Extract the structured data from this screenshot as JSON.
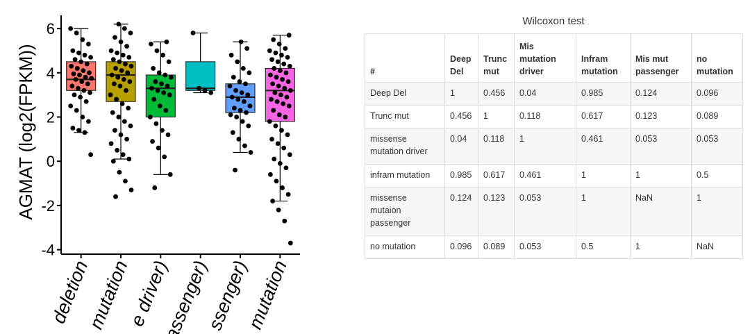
{
  "chart_data": {
    "type": "box",
    "y_label": "AGMAT  (log2(FPKM))",
    "categories": [
      "deletion",
      "mutation",
      "e driver)",
      "assenger)",
      "ssenger)",
      "mutation"
    ],
    "colors": [
      "#f8766d",
      "#b79f00",
      "#00ba38",
      "#00bfc4",
      "#619cff",
      "#f564e3"
    ],
    "ylim": [
      -4.2,
      6.6
    ],
    "yticks": [
      -4,
      -2,
      0,
      2,
      4,
      6
    ],
    "boxes": [
      {
        "min": 1.3,
        "q1": 3.2,
        "median": 3.7,
        "q3": 4.5,
        "max": 6.0,
        "points": [
          6.0,
          5.8,
          5.5,
          5.3,
          5.0,
          4.9,
          4.8,
          4.7,
          4.6,
          4.5,
          4.4,
          4.3,
          4.2,
          4.1,
          4.0,
          3.95,
          3.9,
          3.8,
          3.75,
          3.7,
          3.6,
          3.5,
          3.4,
          3.3,
          3.2,
          3.1,
          3.0,
          2.9,
          2.7,
          2.5,
          2.3,
          2.0,
          1.8,
          1.5,
          1.4,
          1.3,
          0.3
        ]
      },
      {
        "min": 0.1,
        "q1": 2.7,
        "median": 3.9,
        "q3": 4.5,
        "max": 6.2,
        "points": [
          6.2,
          6.0,
          5.8,
          5.6,
          5.4,
          5.2,
          5.0,
          4.9,
          4.8,
          4.7,
          4.6,
          4.5,
          4.4,
          4.3,
          4.2,
          4.1,
          4.0,
          3.9,
          3.8,
          3.7,
          3.6,
          3.5,
          3.4,
          3.2,
          3.0,
          2.8,
          2.6,
          2.4,
          2.2,
          2.0,
          1.8,
          1.6,
          1.4,
          1.2,
          1.0,
          0.8,
          0.5,
          0.3,
          0.1,
          0.0,
          -0.5,
          -0.9,
          -1.3,
          -1.6
        ]
      },
      {
        "min": -0.6,
        "q1": 2.0,
        "median": 3.3,
        "q3": 3.9,
        "max": 5.4,
        "points": [
          5.4,
          5.3,
          5.0,
          4.8,
          4.5,
          4.2,
          4.0,
          3.9,
          3.8,
          3.6,
          3.5,
          3.4,
          3.3,
          3.2,
          3.1,
          3.0,
          2.8,
          2.5,
          2.3,
          2.0,
          1.7,
          1.4,
          1.2,
          0.9,
          0.6,
          0.2,
          -0.6,
          -1.2
        ]
      },
      {
        "min": 3.1,
        "q1": 3.2,
        "median": 3.3,
        "q3": 4.5,
        "max": 5.8,
        "points": [
          5.8,
          3.3,
          3.2,
          3.1
        ]
      },
      {
        "min": 0.4,
        "q1": 2.2,
        "median": 2.9,
        "q3": 3.5,
        "max": 5.4,
        "points": [
          5.4,
          5.1,
          4.8,
          4.5,
          4.2,
          4.0,
          3.8,
          3.6,
          3.5,
          3.4,
          3.2,
          3.1,
          3.0,
          2.9,
          2.8,
          2.7,
          2.5,
          2.4,
          2.3,
          2.2,
          2.1,
          2.0,
          1.8,
          1.6,
          1.3,
          1.0,
          0.7,
          0.4,
          -0.4
        ]
      },
      {
        "min": -1.8,
        "q1": 1.8,
        "median": 3.2,
        "q3": 4.2,
        "max": 5.7,
        "points": [
          5.7,
          5.5,
          5.3,
          5.1,
          5.0,
          4.9,
          4.8,
          4.7,
          4.6,
          4.5,
          4.4,
          4.3,
          4.2,
          4.1,
          4.0,
          3.9,
          3.8,
          3.7,
          3.6,
          3.5,
          3.4,
          3.3,
          3.2,
          3.1,
          3.0,
          2.9,
          2.8,
          2.7,
          2.6,
          2.5,
          2.3,
          2.1,
          2.0,
          1.8,
          1.6,
          1.4,
          1.2,
          1.0,
          0.8,
          0.6,
          0.3,
          0.1,
          -0.1,
          -0.3,
          -0.6,
          -0.9,
          -1.2,
          -1.5,
          -1.8,
          -2.2,
          -2.7,
          -3.7
        ]
      }
    ]
  },
  "table": {
    "title": "Wilcoxon test",
    "header": [
      "#",
      "Deep Del",
      "Trunc mut",
      "Mis mutation driver",
      "Infram mutation",
      "Mis mut passenger",
      "no mutation"
    ],
    "rows": [
      [
        "Deep Del",
        1,
        0.456,
        0.04,
        0.985,
        0.124,
        0.096
      ],
      [
        "Trunc mut",
        0.456,
        1,
        0.118,
        0.617,
        0.123,
        0.089
      ],
      [
        "missense mutation driver",
        0.04,
        0.118,
        1,
        0.461,
        0.053,
        0.053
      ],
      [
        "infram mutation",
        0.985,
        0.617,
        0.461,
        1,
        1,
        0.5
      ],
      [
        "missense mutaion passenger",
        0.124,
        0.123,
        0.053,
        1,
        "NaN",
        1
      ],
      [
        "no mutation",
        0.096,
        0.089,
        0.053,
        0.5,
        1,
        "NaN"
      ]
    ]
  }
}
